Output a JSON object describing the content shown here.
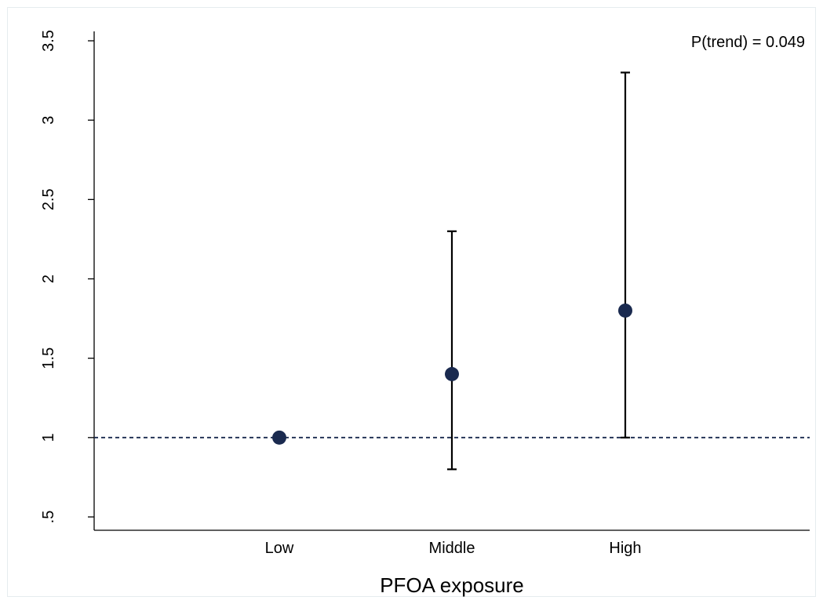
{
  "chart_data": {
    "type": "scatter",
    "title": "",
    "xlabel": "PFOA exposure",
    "ylabel": "",
    "categories": [
      "Low",
      "Middle",
      "High"
    ],
    "points": [
      {
        "category": "Low",
        "estimate": 1.0,
        "ci_low": null,
        "ci_high": null
      },
      {
        "category": "Middle",
        "estimate": 1.4,
        "ci_low": 0.8,
        "ci_high": 2.3
      },
      {
        "category": "High",
        "estimate": 1.8,
        "ci_low": 1.0,
        "ci_high": 3.3
      }
    ],
    "yticks": [
      0.5,
      1,
      1.5,
      2,
      2.5,
      3,
      3.5
    ],
    "ytick_labels": [
      ".5",
      "1",
      "1.5",
      "2",
      "2.5",
      "3",
      "3.5"
    ],
    "ylim": [
      0.42,
      3.58
    ],
    "reference_line": {
      "y": 1,
      "style": "dashed"
    },
    "annotation": "P(trend) = 0.049",
    "grid": false,
    "legend": "none",
    "colors": {
      "marker": "#1a2a4f",
      "reference_line": "#1a2a4f",
      "error_bar": "#000000"
    }
  }
}
